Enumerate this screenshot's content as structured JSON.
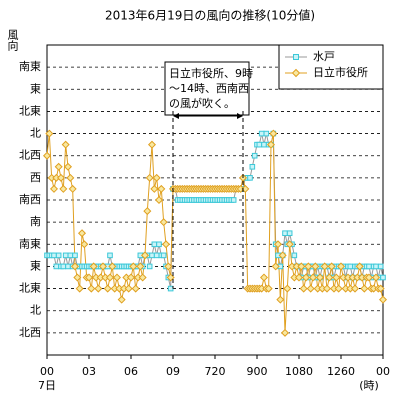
{
  "chart_data": {
    "type": "line",
    "title": "2013年6月19日の風向の推移(10分値)",
    "ylabel": "風向",
    "xlabel": "(時)",
    "x_date_label": "7日",
    "x": [
      0,
      10,
      20,
      30,
      40,
      50,
      60,
      70,
      80,
      90,
      100,
      110,
      120,
      130,
      140,
      150,
      160,
      170,
      180,
      190,
      200,
      210,
      220,
      230,
      240,
      250,
      260,
      270,
      280,
      290,
      300,
      310,
      320,
      330,
      340,
      350,
      360,
      370,
      380,
      390,
      400,
      410,
      420,
      430,
      440,
      450,
      460,
      470,
      480,
      490,
      500,
      510,
      520,
      530,
      540,
      550,
      560,
      570,
      580,
      590,
      600,
      610,
      620,
      630,
      640,
      650,
      660,
      670,
      680,
      690,
      700,
      710,
      720,
      730,
      740,
      750,
      760,
      770,
      780,
      790,
      800,
      810,
      820,
      830,
      840,
      850,
      860,
      870,
      880,
      890,
      900,
      910,
      920,
      930,
      940,
      950,
      960,
      970,
      980,
      990,
      1000,
      1010,
      1020,
      1030,
      1040,
      1050,
      1060,
      1070,
      1080,
      1090,
      1100,
      1110,
      1120,
      1130,
      1140,
      1150,
      1160,
      1170,
      1180,
      1190,
      1200,
      1210,
      1220,
      1230,
      1240,
      1250,
      1260,
      1270,
      1280,
      1290,
      1300,
      1310,
      1320,
      1330,
      1340,
      1350,
      1360,
      1370,
      1380,
      1390,
      1400,
      1410,
      1420,
      1430,
      1440
    ],
    "series": [
      {
        "name": "水戸",
        "color": "#3cc8d8",
        "marker": "square",
        "values": [
          112.5,
          112.5,
          112.5,
          112.5,
          90,
          112.5,
          90,
          90,
          112.5,
          90,
          112.5,
          90,
          112.5,
          90,
          90,
          90,
          90,
          90,
          90,
          90,
          90,
          90,
          90,
          90,
          90,
          90,
          90,
          112.5,
          90,
          90,
          90,
          90,
          90,
          90,
          90,
          90,
          90,
          90,
          90,
          90,
          112.5,
          90,
          112.5,
          112.5,
          90,
          112.5,
          135,
          112.5,
          135,
          112.5,
          112.5,
          90,
          67.5,
          45,
          247.5,
          247.5,
          225,
          225,
          225,
          225,
          225,
          225,
          225,
          225,
          225,
          225,
          225,
          225,
          225,
          225,
          225,
          225,
          225,
          225,
          225,
          225,
          225,
          225,
          225,
          225,
          225,
          247.5,
          247.5,
          247.5,
          247.5,
          270,
          270,
          270,
          292.5,
          315,
          337.5,
          337.5,
          360,
          337.5,
          360,
          337.5,
          337.5,
          360,
          135,
          112.5,
          90,
          112.5,
          157.5,
          135,
          157.5,
          135,
          112.5,
          90,
          90,
          67.5,
          90,
          90,
          67.5,
          90,
          90,
          67.5,
          90,
          67.5,
          90,
          90,
          90,
          67.5,
          90,
          67.5,
          90,
          90,
          90,
          90,
          67.5,
          90,
          90,
          67.5,
          90,
          90,
          90,
          67.5,
          90,
          90,
          90,
          67.5,
          90,
          90,
          67.5,
          90,
          67.5
        ]
      },
      {
        "name": "日立市役所",
        "color": "#e0a020",
        "marker": "diamond",
        "values": [
          315,
          360,
          270,
          247.5,
          270,
          292.5,
          270,
          247.5,
          337.5,
          292.5,
          270,
          247.5,
          90,
          67.5,
          45,
          157.5,
          135,
          67.5,
          67.5,
          45,
          90,
          67.5,
          45,
          67.5,
          90,
          67.5,
          45,
          67.5,
          90,
          45,
          67.5,
          45,
          22.5,
          45,
          67.5,
          45,
          67.5,
          90,
          45,
          67.5,
          90,
          67.5,
          112.5,
          202.5,
          270,
          337.5,
          247.5,
          270,
          225,
          247.5,
          180,
          135,
          90,
          67.5,
          247.5,
          247.5,
          247.5,
          247.5,
          247.5,
          247.5,
          247.5,
          247.5,
          247.5,
          247.5,
          247.5,
          247.5,
          247.5,
          247.5,
          247.5,
          247.5,
          247.5,
          247.5,
          247.5,
          247.5,
          247.5,
          247.5,
          247.5,
          247.5,
          247.5,
          247.5,
          247.5,
          247.5,
          247.5,
          247.5,
          270,
          247.5,
          45,
          45,
          45,
          45,
          45,
          45,
          45,
          67.5,
          45,
          45,
          337.5,
          360,
          90,
          135,
          22.5,
          112.5,
          -45,
          45,
          135,
          90,
          67.5,
          90,
          67.5,
          90,
          45,
          67.5,
          90,
          45,
          67.5,
          90,
          45,
          67.5,
          45,
          90,
          45,
          67.5,
          90,
          45,
          67.5,
          45,
          90,
          67.5,
          45,
          67.5,
          45,
          67.5,
          45,
          67.5,
          90,
          67.5,
          45,
          67.5,
          67.5,
          45,
          45,
          67.5,
          45,
          45,
          22.5
        ]
      }
    ],
    "xlim": [
      0,
      1440
    ],
    "xticks": [
      {
        "value": 0,
        "label": "00"
      },
      {
        "value": 180,
        "label": "03"
      },
      {
        "value": 360,
        "label": "06"
      },
      {
        "value": 540,
        "label": "09"
      },
      720,
      900,
      1080,
      1260,
      {
        "value": 1440,
        "label": "00"
      }
    ],
    "ylim": [
      -90,
      540
    ],
    "yticks": [
      {
        "value": -45,
        "label": "北西"
      },
      {
        "value": 0,
        "label": "北"
      },
      {
        "value": 45,
        "label": "北東"
      },
      {
        "value": 90,
        "label": "東"
      },
      {
        "value": 135,
        "label": "南東"
      },
      {
        "value": 180,
        "label": "南"
      },
      {
        "value": 225,
        "label": "南西"
      },
      {
        "value": 270,
        "label": "西"
      },
      {
        "value": 315,
        "label": "北西"
      },
      {
        "value": 360,
        "label": "北"
      },
      {
        "value": 405,
        "label": "北東"
      },
      {
        "value": 450,
        "label": "東"
      },
      {
        "value": 495,
        "label": "南東"
      }
    ],
    "grid": true,
    "legend": "upper right",
    "annotation": {
      "lines": [
        "日立市役所、9時",
        "～14時、西南西",
        "の風が吹く。"
      ],
      "x_start": 540,
      "x_end": 840
    }
  }
}
